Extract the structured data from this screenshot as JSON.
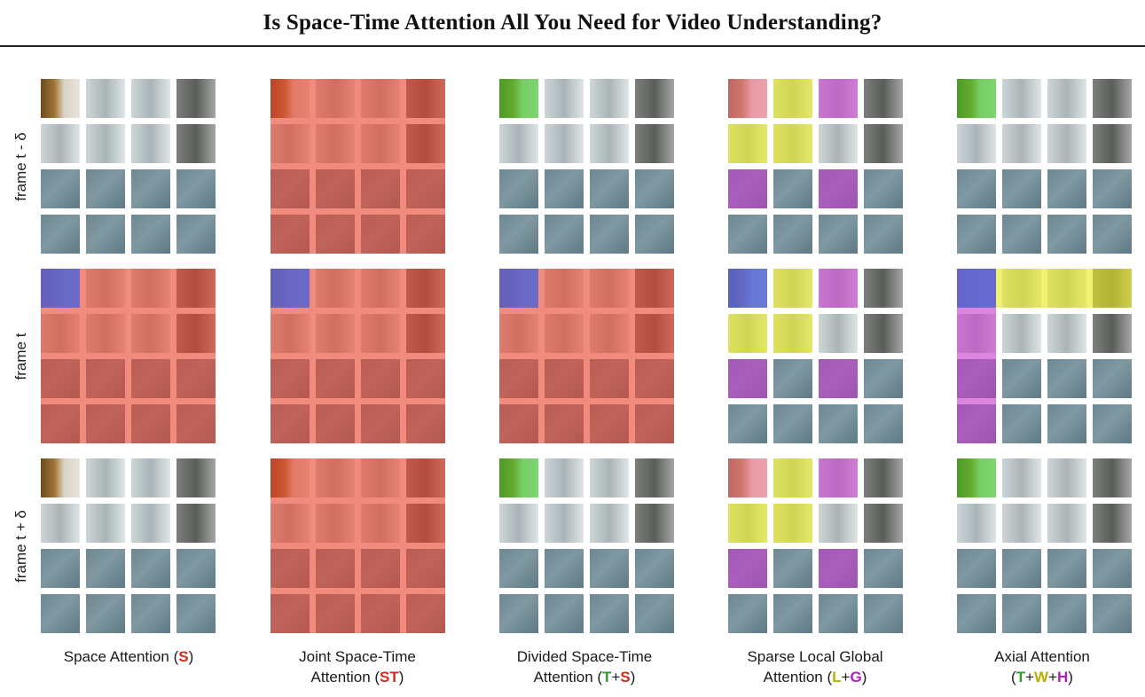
{
  "title": "Is Space-Time Attention All You Need for Video Understanding?",
  "row_labels": [
    "frame t - δ",
    "frame t",
    "frame t + δ"
  ],
  "colors": {
    "query_blue": "#5566d8",
    "space_red": "#e8442e",
    "time_green": "#3ccc2a",
    "local_yellow": "#e8e81a",
    "global_magenta": "#c63ccc",
    "pink": "#f07890",
    "caption_red": "#d42a1a",
    "caption_green": "#2e9e2a",
    "caption_yellow": "#b8b000",
    "caption_magenta": "#b020c0"
  },
  "schemes": [
    {
      "id": "S",
      "caption": [
        [
          {
            "t": "Space Attention ("
          },
          {
            "t": "S",
            "c": "caption_red"
          },
          {
            "t": ")"
          }
        ]
      ],
      "highlights": {
        "1": {
          "all": "space_red"
        }
      },
      "query": [
        1,
        0,
        0
      ]
    },
    {
      "id": "ST",
      "caption": [
        [
          {
            "t": "Joint Space-Time"
          }
        ],
        [
          {
            "t": "Attention ("
          },
          {
            "t": "ST",
            "c": "caption_red"
          },
          {
            "t": ")"
          }
        ]
      ],
      "highlights": {
        "0": {
          "all": "space_red"
        },
        "1": {
          "all": "space_red"
        },
        "2": {
          "all": "space_red"
        }
      },
      "query": [
        1,
        0,
        0
      ]
    },
    {
      "id": "T+S",
      "caption": [
        [
          {
            "t": "Divided Space-Time"
          }
        ],
        [
          {
            "t": "Attention ("
          },
          {
            "t": "T",
            "c": "caption_green"
          },
          {
            "t": "+"
          },
          {
            "t": "S",
            "c": "caption_red"
          },
          {
            "t": ")"
          }
        ]
      ],
      "highlights": {
        "0": {
          "cells": [
            [
              0,
              0,
              "time_green"
            ]
          ]
        },
        "1": {
          "all": "space_red"
        },
        "2": {
          "cells": [
            [
              0,
              0,
              "time_green"
            ]
          ]
        }
      },
      "query": [
        1,
        0,
        0
      ]
    },
    {
      "id": "L+G",
      "caption": [
        [
          {
            "t": "Sparse Local Global"
          }
        ],
        [
          {
            "t": "Attention ("
          },
          {
            "t": "L",
            "c": "caption_yellow"
          },
          {
            "t": "+"
          },
          {
            "t": "G",
            "c": "caption_magenta"
          },
          {
            "t": ")"
          }
        ]
      ],
      "highlights": {
        "0": {
          "cells": [
            [
              0,
              0,
              "pink"
            ],
            [
              0,
              1,
              "local_yellow"
            ],
            [
              1,
              0,
              "local_yellow"
            ],
            [
              1,
              1,
              "local_yellow"
            ],
            [
              0,
              2,
              "global_magenta"
            ],
            [
              2,
              0,
              "global_magenta"
            ],
            [
              2,
              2,
              "global_magenta"
            ]
          ]
        },
        "1": {
          "cells": [
            [
              0,
              1,
              "local_yellow"
            ],
            [
              1,
              0,
              "local_yellow"
            ],
            [
              1,
              1,
              "local_yellow"
            ],
            [
              0,
              2,
              "global_magenta"
            ],
            [
              2,
              0,
              "global_magenta"
            ],
            [
              2,
              2,
              "global_magenta"
            ]
          ]
        },
        "2": {
          "cells": [
            [
              0,
              0,
              "pink"
            ],
            [
              0,
              1,
              "local_yellow"
            ],
            [
              1,
              0,
              "local_yellow"
            ],
            [
              1,
              1,
              "local_yellow"
            ],
            [
              0,
              2,
              "global_magenta"
            ],
            [
              2,
              0,
              "global_magenta"
            ],
            [
              2,
              2,
              "global_magenta"
            ]
          ]
        }
      },
      "query": [
        1,
        0,
        0
      ]
    },
    {
      "id": "T+W+H",
      "caption": [
        [
          {
            "t": "Axial Attention"
          }
        ],
        [
          {
            "t": "("
          },
          {
            "t": "T",
            "c": "caption_green"
          },
          {
            "t": "+"
          },
          {
            "t": "W",
            "c": "caption_yellow"
          },
          {
            "t": "+"
          },
          {
            "t": "H",
            "c": "caption_magenta"
          },
          {
            "t": ")"
          }
        ]
      ],
      "highlights": {
        "0": {
          "cells": [
            [
              0,
              0,
              "time_green"
            ]
          ]
        },
        "1": {
          "row_band": [
            0,
            "local_yellow"
          ],
          "col_band": [
            0,
            "global_magenta"
          ]
        },
        "2": {
          "cells": [
            [
              0,
              0,
              "time_green"
            ]
          ]
        }
      },
      "query": [
        1,
        0,
        0
      ]
    }
  ]
}
